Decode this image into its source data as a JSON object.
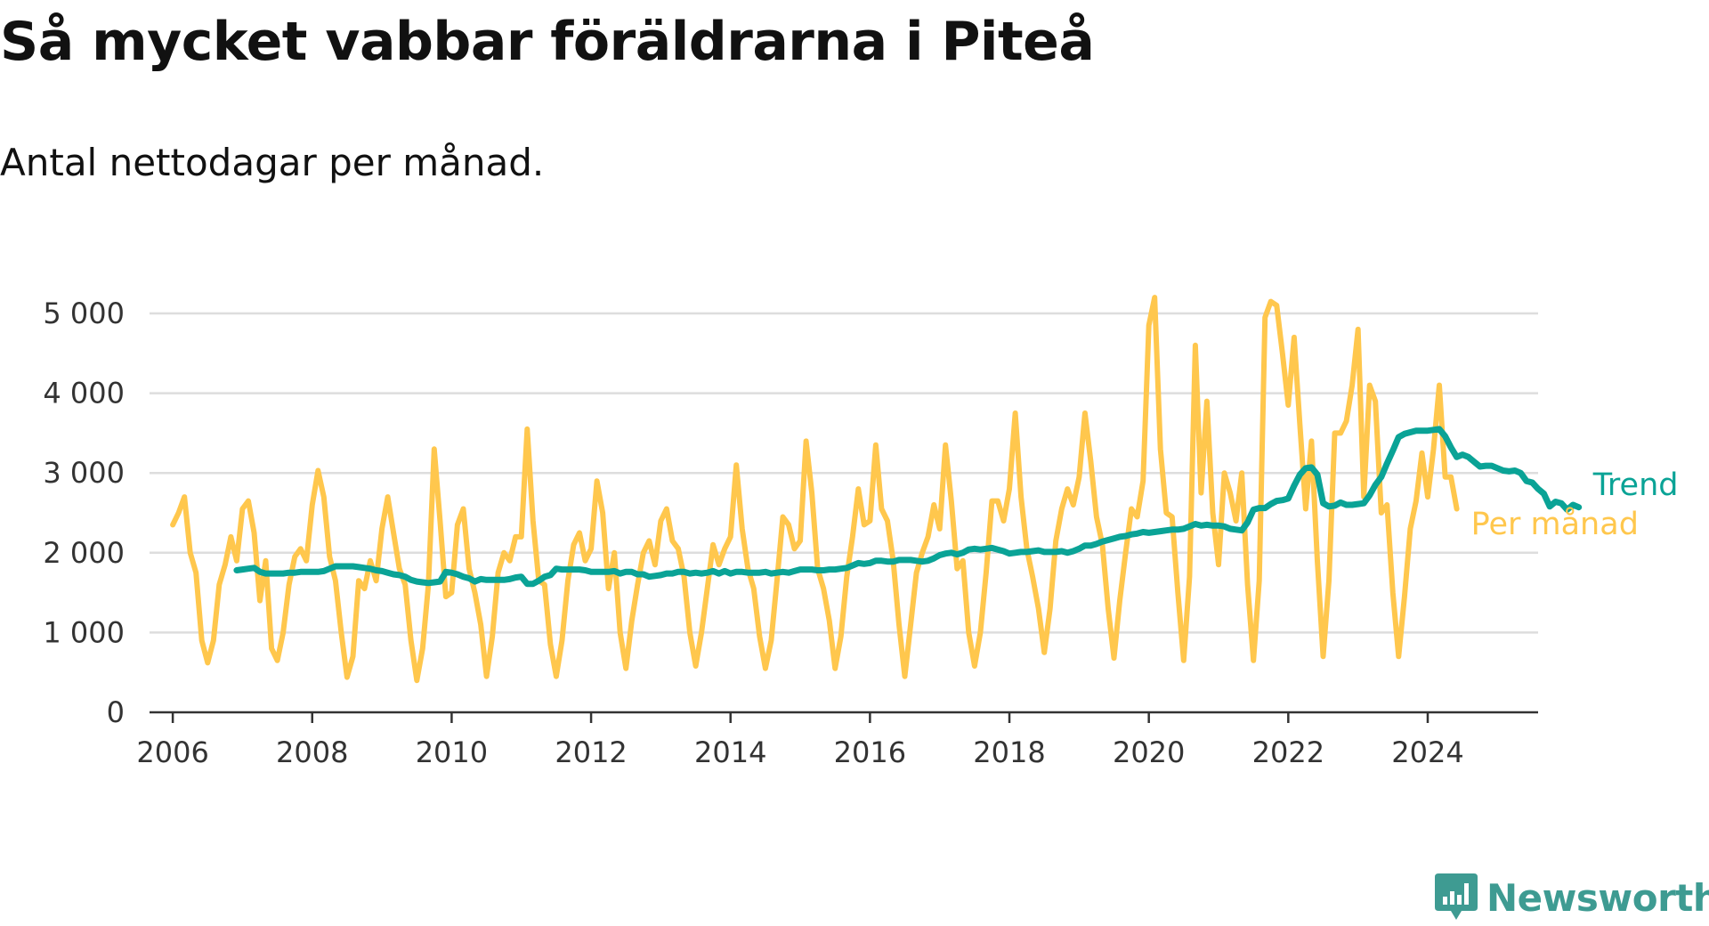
{
  "title": "Så mycket vabbar föräldrarna i Piteå",
  "subtitle": "Antal nettodagar per månad.",
  "brand": {
    "name": "Newsworthy",
    "icon": "bar-chart-badge-icon",
    "color": "#3e9b92"
  },
  "colors": {
    "monthly": "#ffc74d",
    "trend": "#0aa396",
    "grid": "#dddddd",
    "axis": "#333333"
  },
  "chart_data": {
    "type": "line",
    "x_unit": "months",
    "x_start": "2006-01",
    "xlim": [
      "2005-09",
      "2025-08"
    ],
    "ylim": [
      0,
      5000
    ],
    "x_tick_labels": [
      "2006",
      "2008",
      "2010",
      "2012",
      "2014",
      "2016",
      "2018",
      "2020",
      "2022",
      "2024"
    ],
    "y_tick_values": [
      0,
      1000,
      2000,
      3000,
      4000,
      5000
    ],
    "y_tick_labels": [
      "0",
      "1 000",
      "2 000",
      "3 000",
      "4 000",
      "5 000"
    ],
    "grid": true,
    "legend_placement": "line-end labels, right",
    "series": [
      {
        "name": "Per månad",
        "color": "#ffc74d",
        "values": [
          2350,
          2500,
          2700,
          2000,
          1750,
          900,
          620,
          900,
          1600,
          1850,
          2200,
          1900,
          2550,
          2650,
          2250,
          1400,
          1900,
          800,
          650,
          1000,
          1600,
          1950,
          2050,
          1900,
          2600,
          3030,
          2700,
          1950,
          1650,
          1000,
          440,
          700,
          1650,
          1550,
          1900,
          1650,
          2300,
          2700,
          2250,
          1800,
          1600,
          900,
          400,
          800,
          1600,
          3300,
          2400,
          1450,
          1500,
          2350,
          2550,
          1800,
          1500,
          1100,
          450,
          950,
          1750,
          2000,
          1900,
          2200,
          2200,
          3550,
          2400,
          1650,
          1600,
          850,
          450,
          900,
          1650,
          2100,
          2250,
          1900,
          2050,
          2900,
          2500,
          1550,
          2000,
          1000,
          550,
          1150,
          1600,
          2000,
          2150,
          1850,
          2400,
          2550,
          2150,
          2050,
          1700,
          1000,
          580,
          1000,
          1550,
          2100,
          1850,
          2050,
          2200,
          3100,
          2300,
          1800,
          1550,
          950,
          550,
          900,
          1650,
          2450,
          2350,
          2050,
          2150,
          3400,
          2750,
          1800,
          1550,
          1150,
          550,
          950,
          1700,
          2200,
          2800,
          2350,
          2400,
          3350,
          2550,
          2400,
          1900,
          1100,
          450,
          1100,
          1750,
          2000,
          2200,
          2600,
          2300,
          3350,
          2650,
          1800,
          1900,
          1000,
          580,
          1000,
          1750,
          2650,
          2650,
          2400,
          2800,
          3750,
          2700,
          2050,
          1700,
          1300,
          750,
          1300,
          2150,
          2550,
          2800,
          2600,
          2950,
          3750,
          3150,
          2450,
          2100,
          1300,
          680,
          1400,
          2000,
          2550,
          2450,
          2900,
          4850,
          5200,
          3300,
          2500,
          2450,
          1500,
          650,
          1700,
          4600,
          2750,
          3900,
          2500,
          1850,
          3000,
          2750,
          2400,
          3000,
          1600,
          650,
          1650,
          4950,
          5150,
          5100,
          4500,
          3850,
          4700,
          3600,
          2550,
          3400,
          1900,
          700,
          1650,
          3500,
          3500,
          3650,
          4100,
          4800,
          2700,
          4100,
          3900,
          2500,
          2600,
          1500,
          700,
          1450,
          2300,
          2650,
          3250,
          2700,
          3300,
          4100,
          2950,
          2950,
          2550
        ]
      },
      {
        "name": "Trend",
        "color": "#0aa396",
        "start": "2006-12",
        "values": [
          1780,
          1790,
          1800,
          1810,
          1760,
          1740,
          1740,
          1740,
          1740,
          1750,
          1750,
          1760,
          1760,
          1760,
          1760,
          1770,
          1800,
          1830,
          1830,
          1830,
          1830,
          1820,
          1810,
          1800,
          1780,
          1770,
          1750,
          1730,
          1720,
          1700,
          1660,
          1640,
          1630,
          1620,
          1630,
          1640,
          1760,
          1750,
          1730,
          1700,
          1680,
          1640,
          1670,
          1660,
          1660,
          1660,
          1660,
          1670,
          1690,
          1700,
          1610,
          1610,
          1650,
          1700,
          1720,
          1800,
          1790,
          1790,
          1790,
          1790,
          1780,
          1760,
          1760,
          1760,
          1760,
          1770,
          1740,
          1760,
          1760,
          1730,
          1730,
          1700,
          1710,
          1720,
          1740,
          1740,
          1760,
          1760,
          1740,
          1750,
          1740,
          1750,
          1770,
          1740,
          1770,
          1740,
          1760,
          1760,
          1750,
          1750,
          1750,
          1760,
          1740,
          1750,
          1760,
          1750,
          1770,
          1790,
          1790,
          1790,
          1780,
          1780,
          1790,
          1790,
          1800,
          1810,
          1840,
          1870,
          1860,
          1870,
          1900,
          1900,
          1890,
          1890,
          1910,
          1910,
          1910,
          1900,
          1890,
          1900,
          1930,
          1970,
          1990,
          2000,
          1980,
          2000,
          2040,
          2050,
          2040,
          2050,
          2060,
          2040,
          2020,
          1990,
          2000,
          2010,
          2010,
          2020,
          2030,
          2010,
          2010,
          2010,
          2020,
          2000,
          2020,
          2050,
          2090,
          2090,
          2110,
          2140,
          2160,
          2180,
          2200,
          2210,
          2230,
          2240,
          2260,
          2250,
          2260,
          2270,
          2280,
          2290,
          2290,
          2300,
          2330,
          2360,
          2340,
          2350,
          2340,
          2340,
          2330,
          2300,
          2290,
          2280,
          2380,
          2540,
          2560,
          2560,
          2610,
          2650,
          2660,
          2680,
          2840,
          2980,
          3060,
          3070,
          2980,
          2620,
          2580,
          2590,
          2630,
          2600,
          2600,
          2610,
          2620,
          2720,
          2850,
          2950,
          3120,
          3280,
          3450,
          3490,
          3510,
          3530,
          3530,
          3530,
          3540,
          3550,
          3460,
          3320,
          3200,
          3230,
          3200,
          3140,
          3080,
          3090,
          3090,
          3060,
          3030,
          3020,
          3030,
          3000,
          2900,
          2880,
          2800,
          2740,
          2580,
          2640,
          2620,
          2540,
          2600,
          2570
        ]
      }
    ]
  }
}
